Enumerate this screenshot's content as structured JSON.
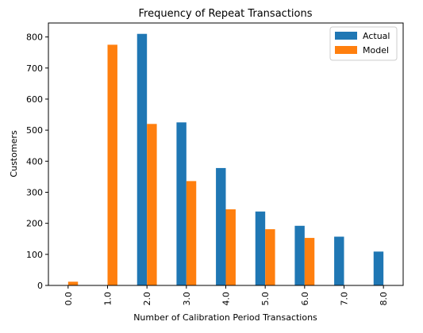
{
  "chart_data": {
    "type": "bar",
    "title": "Frequency of Repeat Transactions",
    "xlabel": "Number of Calibration Period Transactions",
    "ylabel": "Customers",
    "categories": [
      "0.0",
      "1.0",
      "2.0",
      "3.0",
      "4.0",
      "5.0",
      "6.0",
      "7.0",
      "8.0"
    ],
    "series": [
      {
        "name": "Actual",
        "color": "#1f77b4",
        "values": [
          0,
          0,
          810,
          525,
          378,
          238,
          192,
          157,
          109
        ]
      },
      {
        "name": "Model",
        "color": "#ff7f0e",
        "values": [
          12,
          775,
          520,
          336,
          245,
          181,
          153,
          0,
          0
        ]
      }
    ],
    "ylim": [
      0,
      845
    ],
    "yticks": [
      0,
      100,
      200,
      300,
      400,
      500,
      600,
      700,
      800
    ],
    "legend": "top-right",
    "grid": false
  }
}
